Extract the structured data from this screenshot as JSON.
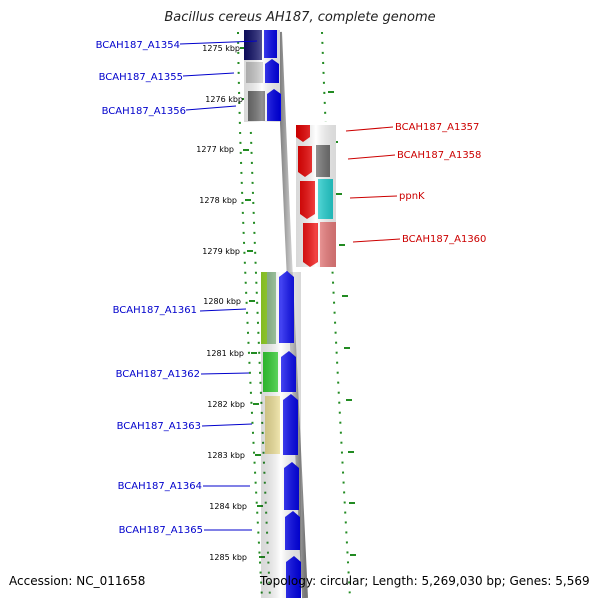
{
  "title": "Bacillus cereus AH187, complete genome",
  "accession": "Accession: NC_011658",
  "topology": "Topology: circular; Length: 5,269,030 bp; Genes: 5,569",
  "ticks": [
    "1275 kbp",
    "1276 kbp",
    "1277 kbp",
    "1278 kbp",
    "1279 kbp",
    "1280 kbp",
    "1281 kbp",
    "1282 kbp",
    "1283 kbp",
    "1284 kbp",
    "1285 kbp"
  ],
  "left_genes": [
    "BCAH187_A1354",
    "BCAH187_A1355",
    "BCAH187_A1356",
    "BCAH187_A1361",
    "BCAH187_A1362",
    "BCAH187_A1363",
    "BCAH187_A1364",
    "BCAH187_A1365"
  ],
  "right_genes": [
    "BCAH187_A1357",
    "BCAH187_A1358",
    "ppnK",
    "BCAH187_A1360"
  ],
  "colors": {
    "forward_strand": "#0000ee",
    "reverse_strand": "#ee0000",
    "backbone": "#999999",
    "ruler": "#228b22"
  }
}
